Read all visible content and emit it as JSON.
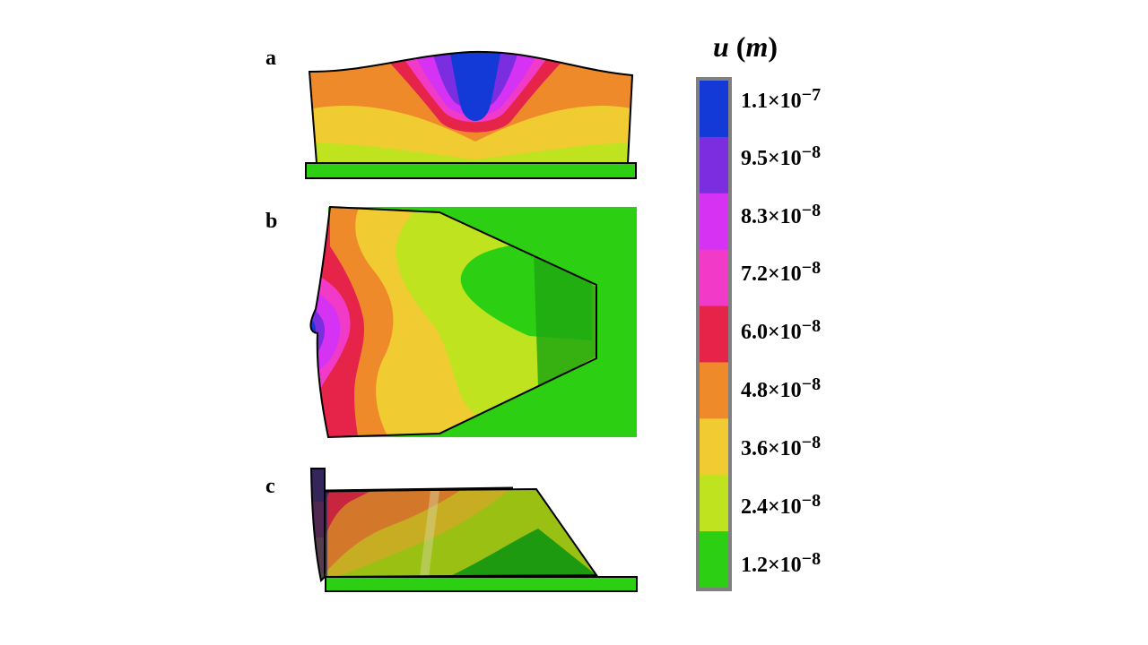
{
  "panels": [
    {
      "label": "a"
    },
    {
      "label": "b"
    },
    {
      "label": "c"
    }
  ],
  "legend": {
    "title_var": "u",
    "title_unit": "m",
    "levels": [
      {
        "mantissa": "1.1",
        "exponent": "−7",
        "color": "#1339d6"
      },
      {
        "mantissa": "9.5",
        "exponent": "−8",
        "color": "#7a2ee0"
      },
      {
        "mantissa": "8.3",
        "exponent": "−8",
        "color": "#d532f3"
      },
      {
        "mantissa": "7.2",
        "exponent": "−8",
        "color": "#f23ac9"
      },
      {
        "mantissa": "6.0",
        "exponent": "−8",
        "color": "#e6244a"
      },
      {
        "mantissa": "4.8",
        "exponent": "−8",
        "color": "#ef8a2a"
      },
      {
        "mantissa": "3.6",
        "exponent": "−8",
        "color": "#f0cb32"
      },
      {
        "mantissa": "2.4",
        "exponent": "−8",
        "color": "#bfe31e"
      },
      {
        "mantissa": "1.2",
        "exponent": "−8",
        "color": "#2ccf12"
      }
    ]
  }
}
